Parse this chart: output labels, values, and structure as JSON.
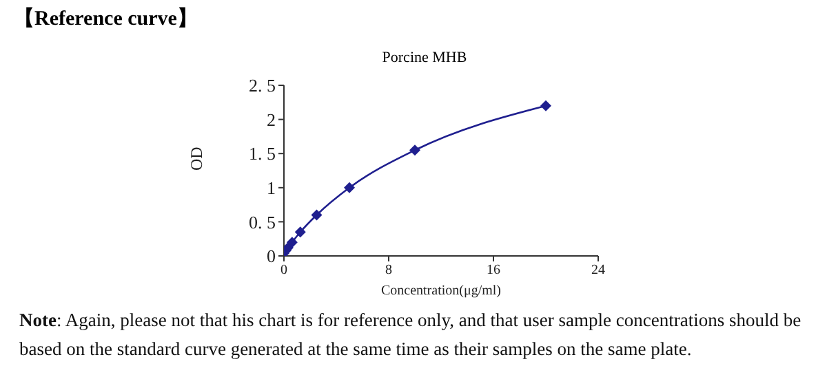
{
  "chart_data": {
    "type": "line",
    "title": "【Reference curve】",
    "subtitle": "Porcine MHB",
    "xlabel": "Concentration(μg/ml)",
    "ylabel": "OD",
    "x": [
      0,
      0.156,
      0.3125,
      0.625,
      1.25,
      2.5,
      5,
      10,
      20
    ],
    "series": [
      {
        "color": "#1f1f8f",
        "values": [
          0.04,
          0.08,
          0.12,
          0.2,
          0.35,
          0.6,
          1.0,
          1.55,
          2.2
        ]
      }
    ],
    "xlim": [
      0,
      24
    ],
    "xticks": [
      0,
      8,
      16,
      24
    ],
    "ylim": [
      0,
      2.5
    ],
    "yticks": [
      0,
      {
        "value": 0.5,
        "label": "0. 5"
      },
      1,
      {
        "value": 1.5,
        "label": "1. 5"
      },
      2,
      {
        "value": 2.5,
        "label": "2. 5"
      }
    ],
    "marker": "diamond",
    "line_style": "solid",
    "grid": false,
    "legend": false,
    "annotations": [
      "Note: Again, please not that his chart is for reference only, and that user sample concentrations should be based on the standard curve generated at the same time as their samples on the same plate."
    ]
  }
}
